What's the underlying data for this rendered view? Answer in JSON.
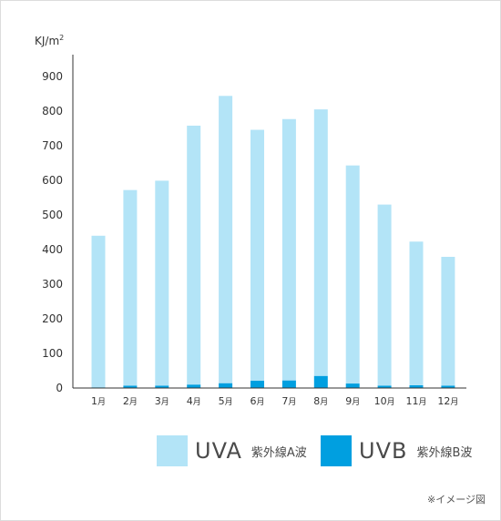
{
  "chart_data": {
    "type": "bar",
    "stacked": true,
    "unit_label": "KJ/m",
    "unit_superscript": "2",
    "ylim": [
      0,
      900
    ],
    "yticks": [
      0,
      100,
      200,
      300,
      400,
      500,
      600,
      700,
      800,
      900
    ],
    "categories": [
      "1",
      "2",
      "3",
      "4",
      "5",
      "6",
      "7",
      "8",
      "9",
      "10",
      "11",
      "12"
    ],
    "category_suffix": "月",
    "series": [
      {
        "name": "UVB",
        "color": "#009fe0",
        "values": [
          2,
          7,
          7,
          10,
          14,
          21,
          22,
          35,
          13,
          7,
          8,
          7
        ]
      },
      {
        "name": "UVA",
        "color": "#b3e4f7",
        "values": [
          438,
          565,
          592,
          748,
          830,
          725,
          755,
          770,
          630,
          523,
          415,
          372
        ]
      }
    ],
    "grid": false
  },
  "legend": {
    "uva": {
      "code": "UVA",
      "desc": "紫外線A波",
      "color": "#b3e4f7"
    },
    "uvb": {
      "code": "UVB",
      "desc": "紫外線B波",
      "color": "#009fe0"
    }
  },
  "note": "※イメージ図"
}
